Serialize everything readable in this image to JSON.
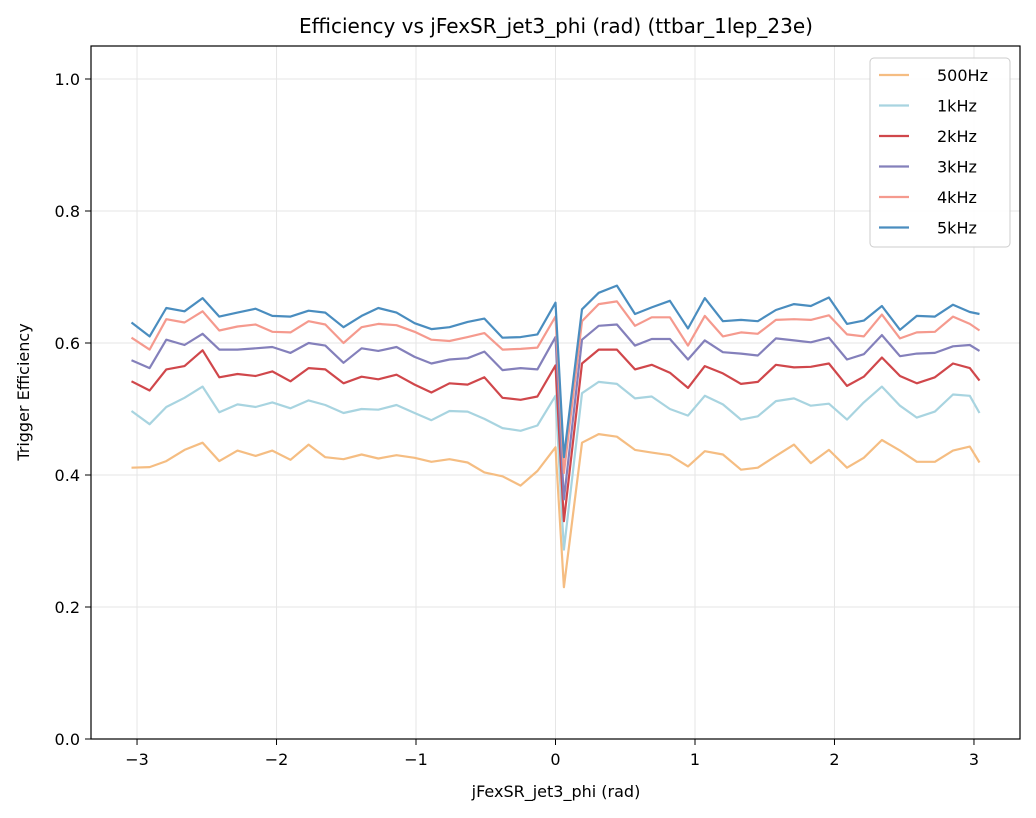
{
  "chart_data": {
    "type": "line",
    "title": "Efficiency vs jFexSR_jet3_phi (rad) (ttbar_1lep_23e)",
    "xlabel": "jFexSR_jet3_phi (rad)",
    "ylabel": "Trigger Efficiency",
    "xlim": [
      -3.33,
      3.33
    ],
    "ylim": [
      0,
      1.05
    ],
    "xticks": [
      -3,
      -2,
      -1,
      0,
      1,
      2,
      3
    ],
    "xtick_labels": [
      "−3",
      "−2",
      "−1",
      "0",
      "1",
      "2",
      "3"
    ],
    "yticks": [
      0,
      0.2,
      0.4,
      0.6,
      0.8,
      1.0
    ],
    "ytick_labels": [
      "0.0",
      "0.2",
      "0.4",
      "0.6",
      "0.8",
      "1.0"
    ],
    "grid": true,
    "legend_position": "top-right",
    "x": [
      -3.04,
      -2.91,
      -2.79,
      -2.66,
      -2.53,
      -2.41,
      -2.28,
      -2.15,
      -2.03,
      -1.9,
      -1.77,
      -1.65,
      -1.52,
      -1.39,
      -1.27,
      -1.14,
      -1.01,
      -0.89,
      -0.76,
      -0.63,
      -0.51,
      -0.38,
      -0.25,
      -0.13,
      -0.0,
      0.06,
      0.19,
      0.31,
      0.44,
      0.57,
      0.69,
      0.82,
      0.95,
      1.07,
      1.2,
      1.33,
      1.45,
      1.58,
      1.71,
      1.83,
      1.96,
      2.09,
      2.21,
      2.34,
      2.47,
      2.59,
      2.72,
      2.85,
      2.97,
      3.04
    ],
    "series": [
      {
        "name": "500Hz",
        "color": "#f5bd82",
        "values": [
          0.411,
          0.412,
          0.421,
          0.438,
          0.449,
          0.421,
          0.437,
          0.429,
          0.437,
          0.423,
          0.446,
          0.427,
          0.424,
          0.431,
          0.425,
          0.43,
          0.426,
          0.42,
          0.424,
          0.419,
          0.404,
          0.398,
          0.384,
          0.406,
          0.442,
          0.23,
          0.449,
          0.462,
          0.458,
          0.438,
          0.434,
          0.43,
          0.413,
          0.436,
          0.431,
          0.408,
          0.411,
          0.429,
          0.446,
          0.418,
          0.438,
          0.411,
          0.426,
          0.453,
          0.437,
          0.42,
          0.42,
          0.437,
          0.443,
          0.419
        ]
      },
      {
        "name": "1kHz",
        "color": "#a8d4e0",
        "values": [
          0.497,
          0.477,
          0.503,
          0.517,
          0.534,
          0.495,
          0.507,
          0.503,
          0.51,
          0.501,
          0.513,
          0.506,
          0.494,
          0.5,
          0.499,
          0.506,
          0.494,
          0.483,
          0.497,
          0.496,
          0.485,
          0.471,
          0.467,
          0.475,
          0.52,
          0.287,
          0.524,
          0.541,
          0.538,
          0.516,
          0.519,
          0.5,
          0.49,
          0.52,
          0.507,
          0.484,
          0.489,
          0.512,
          0.516,
          0.505,
          0.508,
          0.484,
          0.51,
          0.534,
          0.505,
          0.487,
          0.496,
          0.522,
          0.52,
          0.494
        ]
      },
      {
        "name": "2kHz",
        "color": "#d0474b",
        "values": [
          0.542,
          0.528,
          0.56,
          0.565,
          0.589,
          0.548,
          0.553,
          0.55,
          0.557,
          0.542,
          0.562,
          0.56,
          0.539,
          0.549,
          0.545,
          0.552,
          0.537,
          0.525,
          0.539,
          0.537,
          0.548,
          0.517,
          0.514,
          0.519,
          0.566,
          0.33,
          0.569,
          0.59,
          0.59,
          0.56,
          0.567,
          0.555,
          0.532,
          0.565,
          0.554,
          0.538,
          0.541,
          0.567,
          0.563,
          0.564,
          0.569,
          0.535,
          0.549,
          0.578,
          0.55,
          0.539,
          0.548,
          0.569,
          0.562,
          0.543
        ]
      },
      {
        "name": "3kHz",
        "color": "#8480bb",
        "values": [
          0.574,
          0.562,
          0.605,
          0.597,
          0.614,
          0.59,
          0.59,
          0.592,
          0.594,
          0.585,
          0.6,
          0.596,
          0.57,
          0.592,
          0.588,
          0.594,
          0.579,
          0.569,
          0.575,
          0.577,
          0.587,
          0.559,
          0.562,
          0.56,
          0.609,
          0.363,
          0.605,
          0.626,
          0.628,
          0.596,
          0.606,
          0.606,
          0.575,
          0.604,
          0.586,
          0.584,
          0.581,
          0.607,
          0.604,
          0.601,
          0.608,
          0.575,
          0.583,
          0.612,
          0.58,
          0.584,
          0.585,
          0.595,
          0.597,
          0.588
        ]
      },
      {
        "name": "4kHz",
        "color": "#f59a8e",
        "values": [
          0.608,
          0.59,
          0.636,
          0.631,
          0.648,
          0.619,
          0.625,
          0.628,
          0.617,
          0.616,
          0.633,
          0.628,
          0.6,
          0.624,
          0.629,
          0.627,
          0.617,
          0.605,
          0.603,
          0.609,
          0.615,
          0.59,
          0.591,
          0.593,
          0.64,
          0.403,
          0.633,
          0.659,
          0.663,
          0.626,
          0.639,
          0.639,
          0.596,
          0.641,
          0.61,
          0.616,
          0.614,
          0.635,
          0.636,
          0.635,
          0.642,
          0.613,
          0.61,
          0.643,
          0.607,
          0.616,
          0.617,
          0.64,
          0.629,
          0.619
        ]
      },
      {
        "name": "5kHz",
        "color": "#4a8dbf",
        "values": [
          0.631,
          0.61,
          0.653,
          0.648,
          0.668,
          0.64,
          0.646,
          0.652,
          0.641,
          0.64,
          0.649,
          0.646,
          0.624,
          0.641,
          0.653,
          0.646,
          0.63,
          0.621,
          0.624,
          0.632,
          0.637,
          0.608,
          0.609,
          0.613,
          0.661,
          0.427,
          0.651,
          0.676,
          0.687,
          0.644,
          0.654,
          0.664,
          0.622,
          0.668,
          0.633,
          0.635,
          0.633,
          0.65,
          0.659,
          0.656,
          0.669,
          0.629,
          0.634,
          0.656,
          0.62,
          0.641,
          0.64,
          0.658,
          0.647,
          0.644
        ]
      }
    ]
  }
}
